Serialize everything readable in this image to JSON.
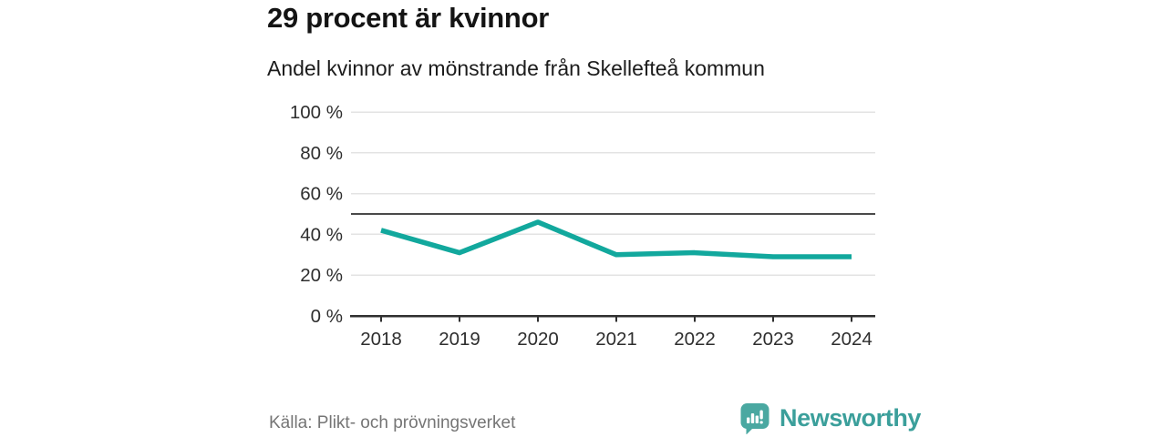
{
  "header": {
    "title": "29 procent är kvinnor",
    "subtitle": "Andel kvinnor av mönstrande från Skellefteå kommun"
  },
  "chart_data": {
    "type": "line",
    "title": "29 procent är kvinnor",
    "subtitle": "Andel kvinnor av mönstrande från Skellefteå kommun",
    "x": [
      "2018",
      "2019",
      "2020",
      "2021",
      "2022",
      "2023",
      "2024"
    ],
    "series": [
      {
        "name": "Andel kvinnor av mönstrande",
        "values": [
          42,
          31,
          46,
          30,
          31,
          29,
          29
        ],
        "color": "#12a89d"
      }
    ],
    "ylim": [
      0,
      100
    ],
    "y_ticks": [
      0,
      20,
      40,
      60,
      80,
      100
    ],
    "y_tick_labels": [
      "0 %",
      "20 %",
      "40 %",
      "60 %",
      "80 %",
      "100 %"
    ],
    "reference_line": {
      "value": 50,
      "color": "#4a4a4a"
    },
    "grid": true,
    "legend": "none",
    "xlabel": "",
    "ylabel": ""
  },
  "footer": {
    "source": "Källa: Plikt- och prövningsverket",
    "brand": "Newsworthy",
    "brand_color": "#3b9f9b",
    "brand_bubble_color": "#4aa8a1"
  },
  "colors": {
    "line": "#12a89d",
    "grid": "#e3e3e3",
    "axis": "#2f2f2f",
    "reference": "#4a4a4a",
    "tick_text": "#2e2e2e"
  }
}
